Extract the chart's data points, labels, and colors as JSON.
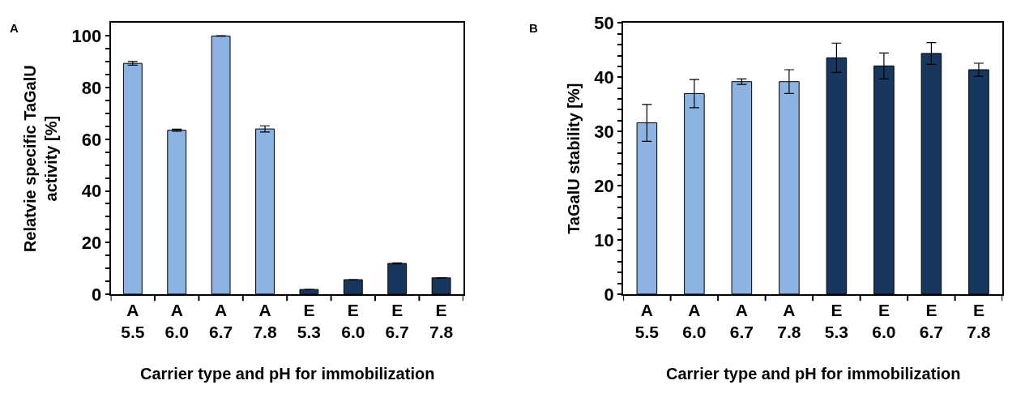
{
  "chart_data": [
    {
      "type": "bar",
      "title": "A",
      "xlabel": "Carrier type and pH for immobilization",
      "ylabel": "Relatvie specific TaGalU\nactivity [%]",
      "categories": [
        "A\n5.5",
        "A\n6.0",
        "A\n6.7",
        "A\n7.8",
        "E\n5.3",
        "E\n6.0",
        "E\n6.7",
        "E\n7.8"
      ],
      "values": [
        89.4,
        63.5,
        100,
        64.0,
        1.8,
        5.6,
        11.9,
        6.3
      ],
      "errors": [
        0.7,
        0.4,
        0.1,
        1.2,
        null,
        null,
        0.2,
        null
      ],
      "colors": [
        "#8db3e2",
        "#8db3e2",
        "#8db3e2",
        "#8db3e2",
        "#17375e",
        "#17375e",
        "#17375e",
        "#17375e"
      ],
      "ylim": [
        0,
        105
      ],
      "yticks": [
        0,
        {
          "value": 5,
          "label": null
        },
        {
          "value": 10,
          "label": null
        },
        {
          "value": 15,
          "label": null
        },
        20,
        {
          "value": 25,
          "label": null
        },
        {
          "value": 30,
          "label": null
        },
        {
          "value": 35,
          "label": null
        },
        40,
        {
          "value": 45,
          "label": null
        },
        {
          "value": 50,
          "label": null
        },
        {
          "value": 55,
          "label": null
        },
        60,
        {
          "value": 65,
          "label": null
        },
        {
          "value": 70,
          "label": null
        },
        {
          "value": 75,
          "label": null
        },
        80,
        {
          "value": 85,
          "label": null
        },
        {
          "value": 90,
          "label": null
        },
        {
          "value": 95,
          "label": null
        },
        100
      ],
      "legend": false
    },
    {
      "type": "bar",
      "title": "B",
      "xlabel": "Carrier type and pH for immobilization",
      "ylabel": "TaGalU stability [%]",
      "categories": [
        "A\n5.5",
        "A\n6.0",
        "A\n6.7",
        "A\n7.8",
        "E\n5.3",
        "E\n6.0",
        "E\n6.7",
        "E\n7.8"
      ],
      "values": [
        31.6,
        37.0,
        39.2,
        39.2,
        43.6,
        42.1,
        44.4,
        41.4
      ],
      "errors": [
        3.4,
        2.6,
        0.5,
        2.2,
        2.7,
        2.4,
        2.0,
        1.2
      ],
      "colors": [
        "#8db3e2",
        "#8db3e2",
        "#8db3e2",
        "#8db3e2",
        "#17375e",
        "#17375e",
        "#17375e",
        "#17375e"
      ],
      "ylim": [
        0,
        50
      ],
      "yticks": [
        0,
        {
          "value": 2,
          "label": null
        },
        {
          "value": 4,
          "label": null
        },
        {
          "value": 6,
          "label": null
        },
        {
          "value": 8,
          "label": null
        },
        10,
        {
          "value": 12,
          "label": null
        },
        {
          "value": 14,
          "label": null
        },
        {
          "value": 16,
          "label": null
        },
        {
          "value": 18,
          "label": null
        },
        20,
        {
          "value": 22,
          "label": null
        },
        {
          "value": 24,
          "label": null
        },
        {
          "value": 26,
          "label": null
        },
        {
          "value": 28,
          "label": null
        },
        30,
        {
          "value": 32,
          "label": null
        },
        {
          "value": 34,
          "label": null
        },
        {
          "value": 36,
          "label": null
        },
        {
          "value": 38,
          "label": null
        },
        40,
        {
          "value": 42,
          "label": null
        },
        {
          "value": 44,
          "label": null
        },
        {
          "value": 46,
          "label": null
        },
        {
          "value": 48,
          "label": null
        },
        50
      ],
      "legend": false
    }
  ]
}
